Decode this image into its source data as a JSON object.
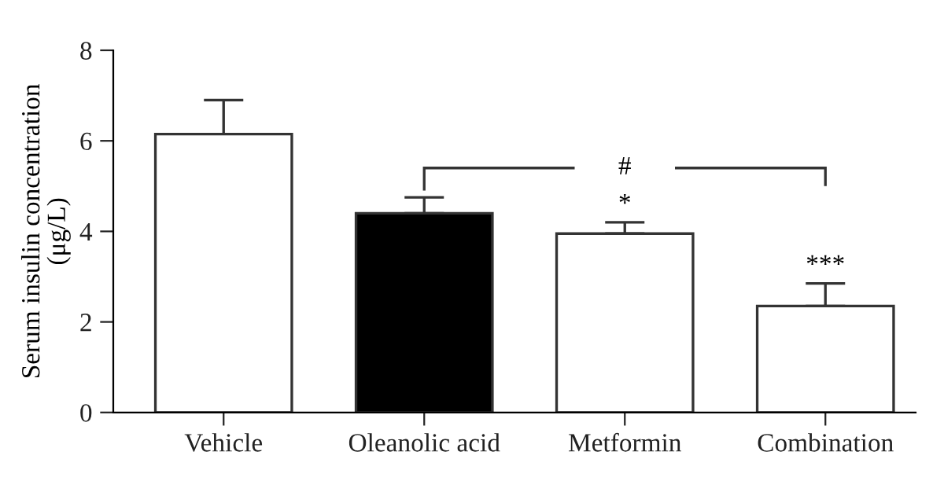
{
  "chart_data": {
    "type": "bar",
    "ylabel": "Serum insulin concentration\n(μg/L)",
    "categories": [
      "Vehicle",
      "Oleanolic acid",
      "Metformin",
      "Combination"
    ],
    "values": [
      6.15,
      4.4,
      3.95,
      2.35
    ],
    "errors": [
      [
        6.15,
        6.9
      ],
      [
        4.4,
        4.75
      ],
      [
        3.95,
        4.2
      ],
      [
        2.35,
        2.85
      ]
    ],
    "colors": [
      "#ffffff",
      "#000000",
      "#ffffff",
      "#ffffff"
    ],
    "annotations": [
      "*",
      "***",
      "#"
    ],
    "ylim": [
      0,
      8
    ],
    "yticks": [
      0,
      2,
      4,
      6,
      8
    ],
    "grid": false
  }
}
